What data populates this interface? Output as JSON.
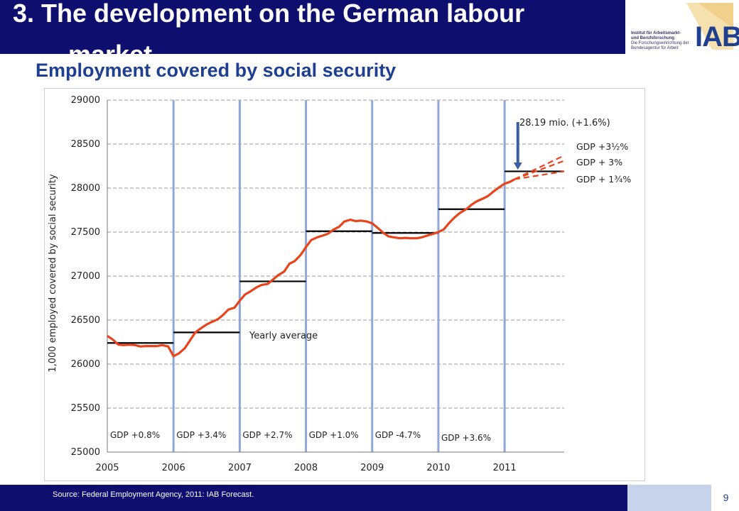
{
  "header": {
    "title_line1": "3. The development on the German labour",
    "title_line2": "market",
    "subtitle": "Employment covered by social security"
  },
  "logo": {
    "line1": "Institut für Arbeitsmarkt-",
    "line2": "und Berufsforschung",
    "line3": "Die Forschungseinrichtung der",
    "line4": "Bundesagentur für Arbeit",
    "wordmark": "IAB"
  },
  "footer": {
    "source": "Source: Federal Employment Agency, 2011: IAB Forecast.",
    "page_number": "9"
  },
  "colors": {
    "brand_navy": "#0e0e6e",
    "brand_blue": "#1f3f8f",
    "series": "#e8431a",
    "year_divider": "#8fa8d8",
    "average": "#000000",
    "arrow": "#3a5fa0"
  },
  "chart_data": {
    "type": "line",
    "title": "",
    "ylabel": "1,000 employed covered by social security",
    "xlabel": "",
    "xlim": [
      2005,
      2011.9
    ],
    "ylim": [
      25000,
      29000
    ],
    "x_ticks": [
      "2005",
      "2006",
      "2007",
      "2008",
      "2009",
      "2010",
      "2011"
    ],
    "y_ticks": [
      "25000",
      "25500",
      "26000",
      "26500",
      "27000",
      "27500",
      "28000",
      "28500",
      "29000"
    ],
    "grid": "horizontal dashed",
    "series": [
      {
        "points": [
          [
            2005.0,
            26320
          ],
          [
            2005.08,
            26280
          ],
          [
            2005.17,
            26220
          ],
          [
            2005.25,
            26215
          ],
          [
            2005.33,
            26220
          ],
          [
            2005.42,
            26215
          ],
          [
            2005.5,
            26200
          ],
          [
            2005.58,
            26205
          ],
          [
            2005.67,
            26205
          ],
          [
            2005.75,
            26205
          ],
          [
            2005.83,
            26215
          ],
          [
            2005.92,
            26200
          ],
          [
            2006.0,
            26090
          ],
          [
            2006.08,
            26120
          ],
          [
            2006.17,
            26180
          ],
          [
            2006.25,
            26270
          ],
          [
            2006.33,
            26360
          ],
          [
            2006.42,
            26410
          ],
          [
            2006.5,
            26450
          ],
          [
            2006.58,
            26480
          ],
          [
            2006.67,
            26510
          ],
          [
            2006.75,
            26560
          ],
          [
            2006.83,
            26620
          ],
          [
            2006.92,
            26640
          ],
          [
            2007.0,
            26720
          ],
          [
            2007.08,
            26790
          ],
          [
            2007.17,
            26830
          ],
          [
            2007.25,
            26870
          ],
          [
            2007.33,
            26900
          ],
          [
            2007.42,
            26910
          ],
          [
            2007.5,
            26960
          ],
          [
            2007.58,
            27010
          ],
          [
            2007.67,
            27050
          ],
          [
            2007.75,
            27140
          ],
          [
            2007.83,
            27170
          ],
          [
            2007.92,
            27240
          ],
          [
            2008.0,
            27330
          ],
          [
            2008.08,
            27410
          ],
          [
            2008.17,
            27440
          ],
          [
            2008.25,
            27460
          ],
          [
            2008.33,
            27480
          ],
          [
            2008.42,
            27530
          ],
          [
            2008.5,
            27560
          ],
          [
            2008.58,
            27620
          ],
          [
            2008.67,
            27640
          ],
          [
            2008.75,
            27625
          ],
          [
            2008.83,
            27630
          ],
          [
            2008.92,
            27620
          ],
          [
            2009.0,
            27600
          ],
          [
            2009.08,
            27550
          ],
          [
            2009.17,
            27490
          ],
          [
            2009.25,
            27450
          ],
          [
            2009.33,
            27440
          ],
          [
            2009.42,
            27430
          ],
          [
            2009.5,
            27435
          ],
          [
            2009.58,
            27430
          ],
          [
            2009.67,
            27430
          ],
          [
            2009.75,
            27440
          ],
          [
            2009.83,
            27460
          ],
          [
            2009.92,
            27480
          ],
          [
            2010.0,
            27500
          ],
          [
            2010.08,
            27530
          ],
          [
            2010.17,
            27610
          ],
          [
            2010.25,
            27670
          ],
          [
            2010.33,
            27720
          ],
          [
            2010.42,
            27760
          ],
          [
            2010.5,
            27810
          ],
          [
            2010.58,
            27850
          ],
          [
            2010.67,
            27880
          ],
          [
            2010.75,
            27910
          ],
          [
            2010.83,
            27960
          ],
          [
            2010.92,
            28010
          ],
          [
            2011.0,
            28050
          ],
          [
            2011.08,
            28070
          ],
          [
            2011.15,
            28100
          ]
        ]
      }
    ],
    "forecasts": [
      {
        "label": "GDP +3½%",
        "points": [
          [
            2011.15,
            28100
          ],
          [
            2011.9,
            28370
          ]
        ]
      },
      {
        "label": "GDP + 3%",
        "points": [
          [
            2011.15,
            28100
          ],
          [
            2011.9,
            28310
          ]
        ]
      },
      {
        "label": "GDP + 1¾%",
        "points": [
          [
            2011.15,
            28100
          ],
          [
            2011.9,
            28190
          ]
        ]
      }
    ],
    "yearly_average_label": "Yearly average",
    "yearly_averages": [
      {
        "x0": 2005.0,
        "x1": 2006.0,
        "y": 26240
      },
      {
        "x0": 2006.0,
        "x1": 2007.0,
        "y": 26360
      },
      {
        "x0": 2007.0,
        "x1": 2008.0,
        "y": 26940
      },
      {
        "x0": 2008.0,
        "x1": 2009.0,
        "y": 27510
      },
      {
        "x0": 2009.0,
        "x1": 2010.0,
        "y": 27490
      },
      {
        "x0": 2010.0,
        "x1": 2011.0,
        "y": 27760
      },
      {
        "x0": 2011.0,
        "x1": 2011.9,
        "y": 28190
      }
    ],
    "gdp_labels": [
      "GDP +0.8%",
      "GDP +3.4%",
      "GDP +2.7%",
      "GDP +1.0%",
      "GDP -4.7%",
      "GDP +3.6%"
    ],
    "annotation": "28.19 mio. (+1.6%)",
    "annotation_arrow": {
      "x": 2011.2,
      "from": 28750,
      "to": 28210
    }
  }
}
